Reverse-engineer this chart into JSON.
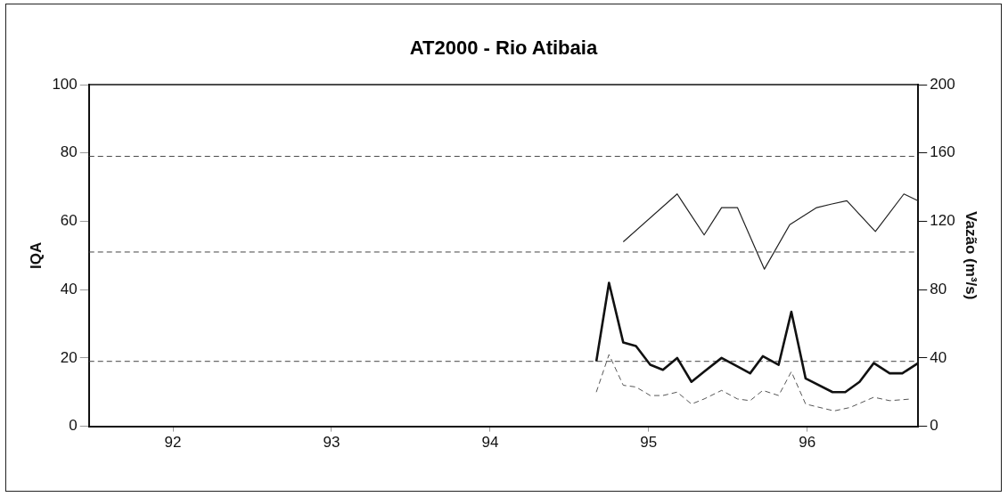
{
  "chart_data": {
    "type": "line",
    "title": "AT2000 - Rio Atibaia",
    "ylabel": "IQA",
    "y2label": "Vazão (m³/s)",
    "xlim": [
      91.47,
      96.7
    ],
    "xticks": [
      92,
      93,
      94,
      95,
      96
    ],
    "ylim": [
      0,
      100
    ],
    "yticks": [
      0,
      20,
      40,
      60,
      80,
      100
    ],
    "y2lim": [
      0,
      200
    ],
    "y2ticks": [
      0,
      40,
      80,
      120,
      160,
      200
    ],
    "grid": false,
    "legend": false,
    "marker": "none",
    "ref_lines": [
      {
        "axis": "y",
        "value": 79,
        "line_style": "dashed",
        "color": "#444444"
      },
      {
        "axis": "y",
        "value": 51,
        "line_style": "dashed",
        "color": "#444444"
      },
      {
        "axis": "y",
        "value": 19,
        "line_style": "dashed",
        "color": "#444444"
      }
    ],
    "series": [
      {
        "color": "#222222",
        "line_style": "solid",
        "x": [
          94.84,
          95.18,
          95.35,
          95.46,
          95.56,
          95.73,
          95.89,
          96.06,
          96.15,
          96.25,
          96.43,
          96.61,
          96.7
        ],
        "values": [
          54,
          68,
          56,
          64,
          64,
          46,
          59,
          64,
          65,
          66,
          57,
          68,
          66
        ]
      },
      {
        "color": "#111111",
        "line_style": "solid",
        "axis": "y2",
        "x": [
          94.67,
          94.75,
          94.84,
          94.92,
          95.01,
          95.09,
          95.18,
          95.27,
          95.35,
          95.46,
          95.56,
          95.64,
          95.72,
          95.82,
          95.9,
          95.99,
          96.16,
          96.24,
          96.33,
          96.42,
          96.52,
          96.6,
          96.7
        ],
        "values": [
          38,
          84,
          49,
          47,
          36,
          33,
          40,
          26,
          32,
          40,
          35,
          31,
          41,
          36,
          67,
          28,
          20,
          20,
          26,
          37,
          31,
          31,
          37
        ]
      },
      {
        "color": "#555555",
        "line_style": "dashed",
        "axis": "y2",
        "x": [
          94.67,
          94.75,
          94.84,
          94.92,
          95.01,
          95.09,
          95.18,
          95.27,
          95.35,
          95.46,
          95.56,
          95.64,
          95.72,
          95.82,
          95.9,
          95.99,
          96.17,
          96.27,
          96.42,
          96.52,
          96.66
        ],
        "values": [
          20,
          42,
          24,
          23,
          18,
          18,
          20,
          13,
          16,
          21,
          16,
          15,
          21,
          18,
          32,
          13,
          9,
          11,
          17,
          15,
          16
        ]
      }
    ]
  }
}
